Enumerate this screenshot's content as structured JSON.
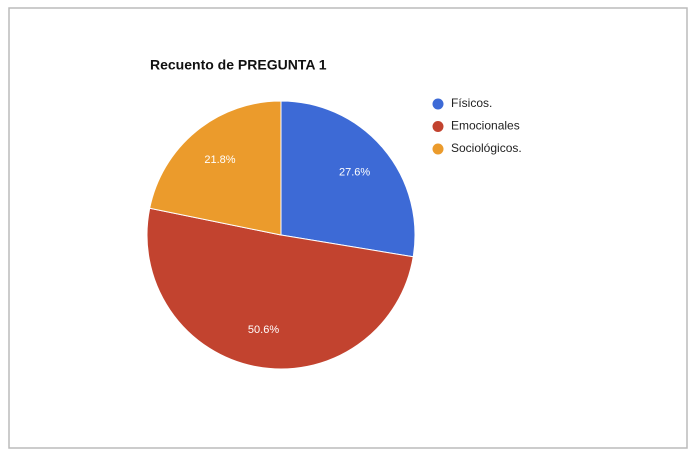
{
  "chart_data": {
    "type": "pie",
    "title": "Recuento de PREGUNTA 1",
    "categories": [
      "Físicos.",
      "Emocionales",
      "Sociológicos."
    ],
    "values": [
      27.6,
      50.6,
      21.8
    ],
    "value_labels": [
      "27.6%",
      "50.6%",
      "21.8%"
    ],
    "colors": [
      "#3d6ad6",
      "#c2432f",
      "#eb9b2c"
    ],
    "legend": "right"
  }
}
